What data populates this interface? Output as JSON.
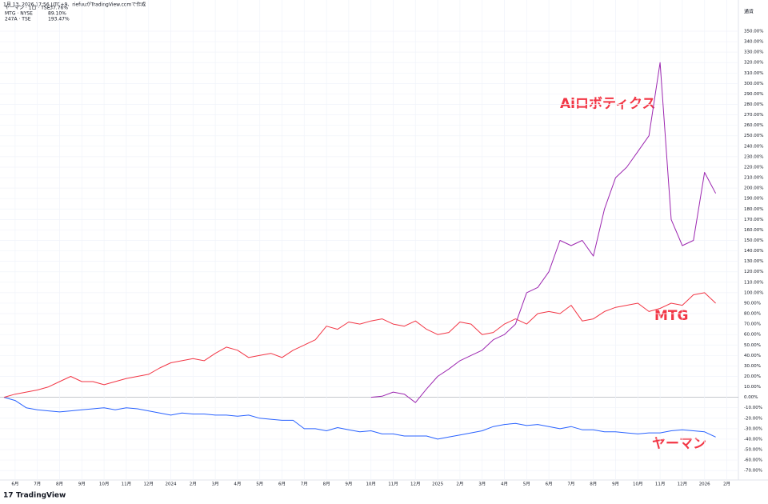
{
  "chart_data": {
    "type": "line",
    "header": "1月 13, 2026 17:56 UTC+9、riefuuがTradingView.comで作成",
    "axis_label": "通貨",
    "footer": "TradingView",
    "annotations": [
      "Aiロボティクス",
      "MTG",
      "ヤーマン"
    ],
    "categories": [
      null,
      "6月",
      null,
      "7月",
      null,
      "8月",
      null,
      "9月",
      null,
      "10月",
      null,
      "11月",
      null,
      "12月",
      null,
      "2024",
      null,
      "2月",
      null,
      "3月",
      null,
      "4月",
      null,
      "5月",
      null,
      "6月",
      null,
      "7月",
      null,
      "8月",
      null,
      "9月",
      null,
      "10月",
      null,
      "11月",
      null,
      "12月",
      null,
      "2025",
      null,
      "2月",
      null,
      "3月",
      null,
      "4月",
      null,
      "5月",
      null,
      "6月",
      null,
      "7月",
      null,
      "8月",
      null,
      "9月",
      null,
      "10月",
      null,
      "11月",
      null,
      "12月",
      null,
      "2026",
      null,
      "2月"
    ],
    "series": [
      {
        "name": "ヤーマン · 1日 · TSE",
        "last_label": "-37.76%",
        "color": "#2962ff",
        "values": [
          0,
          -3,
          -10,
          -12,
          -13,
          -14,
          -13,
          -12,
          -11,
          -10,
          -12,
          -10,
          -11,
          -13,
          -15,
          -17,
          -15,
          -16,
          -16,
          -17,
          -17,
          -18,
          -17,
          -20,
          -21,
          -22,
          -22,
          -30,
          -30,
          -32,
          -29,
          -31,
          -33,
          -32,
          -35,
          -35,
          -37,
          -37,
          -37,
          -40,
          -38,
          -36,
          -34,
          -32,
          -28,
          -26,
          -25,
          -27,
          -26,
          -28,
          -30,
          -28,
          -31,
          -31,
          -33,
          -33,
          -34,
          -35,
          -34,
          -34,
          -32,
          -31,
          -32,
          -33,
          -38,
          null
        ]
      },
      {
        "name": "MTG · NYSE",
        "last_label": "89.10%",
        "color": "#f23645",
        "values": [
          0,
          3,
          5,
          7,
          10,
          15,
          20,
          15,
          15,
          12,
          15,
          18,
          20,
          22,
          28,
          33,
          35,
          37,
          35,
          42,
          48,
          45,
          38,
          40,
          42,
          38,
          45,
          50,
          55,
          68,
          65,
          72,
          70,
          73,
          75,
          70,
          68,
          73,
          65,
          60,
          62,
          72,
          70,
          60,
          62,
          70,
          75,
          70,
          80,
          82,
          80,
          88,
          73,
          75,
          82,
          86,
          88,
          90,
          82,
          85,
          90,
          88,
          98,
          100,
          90,
          null
        ]
      },
      {
        "name": "247A · TSE",
        "last_label": "193.47%",
        "color": "#9c27b0",
        "values": [
          null,
          null,
          null,
          null,
          null,
          null,
          null,
          null,
          null,
          null,
          null,
          null,
          null,
          null,
          null,
          null,
          null,
          null,
          null,
          null,
          null,
          null,
          null,
          null,
          null,
          null,
          null,
          null,
          null,
          null,
          null,
          null,
          null,
          0,
          1,
          5,
          3,
          -5,
          8,
          20,
          27,
          35,
          40,
          45,
          55,
          60,
          70,
          100,
          105,
          120,
          150,
          145,
          150,
          135,
          180,
          210,
          220,
          235,
          250,
          320,
          170,
          145,
          150,
          215,
          195,
          null
        ]
      }
    ],
    "ylim": [
      -76,
      363
    ],
    "yticks": [
      {
        "value": -70,
        "label": "-70.00%"
      },
      {
        "value": -60,
        "label": "-60.00%"
      },
      {
        "value": -50,
        "label": "-50.00%"
      },
      {
        "value": -40,
        "label": "-40.00%"
      },
      {
        "value": -30,
        "label": "-30.00%"
      },
      {
        "value": -20,
        "label": "-20.00%"
      },
      {
        "value": -10,
        "label": "-10.00%"
      },
      {
        "value": 0,
        "label": "0.00%"
      },
      {
        "value": 10,
        "label": "10.00%"
      },
      {
        "value": 20,
        "label": "20.00%"
      },
      {
        "value": 30,
        "label": "30.00%"
      },
      {
        "value": 40,
        "label": "40.00%"
      },
      {
        "value": 50,
        "label": "50.00%"
      },
      {
        "value": 60,
        "label": "60.00%"
      },
      {
        "value": 70,
        "label": "70.00%"
      },
      {
        "value": 80,
        "label": "80.00%"
      },
      {
        "value": 90,
        "label": "90.00%"
      },
      {
        "value": 100,
        "label": "100.00%"
      },
      {
        "value": 110,
        "label": "110.00%"
      },
      {
        "value": 120,
        "label": "120.00%"
      },
      {
        "value": 130,
        "label": "130.00%"
      },
      {
        "value": 140,
        "label": "140.00%"
      },
      {
        "value": 150,
        "label": "150.00%"
      },
      {
        "value": 160,
        "label": "160.00%"
      },
      {
        "value": 170,
        "label": "170.00%"
      },
      {
        "value": 180,
        "label": "180.00%"
      },
      {
        "value": 190,
        "label": "190.00%"
      },
      {
        "value": 200,
        "label": "200.00%"
      },
      {
        "value": 210,
        "label": "210.00%"
      },
      {
        "value": 220,
        "label": "220.00%"
      },
      {
        "value": 230,
        "label": "230.00%"
      },
      {
        "value": 240,
        "label": "240.00%"
      },
      {
        "value": 250,
        "label": "250.00%"
      },
      {
        "value": 260,
        "label": "260.00%"
      },
      {
        "value": 270,
        "label": "270.00%"
      },
      {
        "value": 280,
        "label": "280.00%"
      },
      {
        "value": 290,
        "label": "290.00%"
      },
      {
        "value": 300,
        "label": "300.00%"
      },
      {
        "value": 310,
        "label": "310.00%"
      },
      {
        "value": 320,
        "label": "320.00%"
      },
      {
        "value": 330,
        "label": "330.00%"
      },
      {
        "value": 340,
        "label": "340.00%"
      },
      {
        "value": 350,
        "label": "350.00%"
      }
    ],
    "grid": true
  }
}
